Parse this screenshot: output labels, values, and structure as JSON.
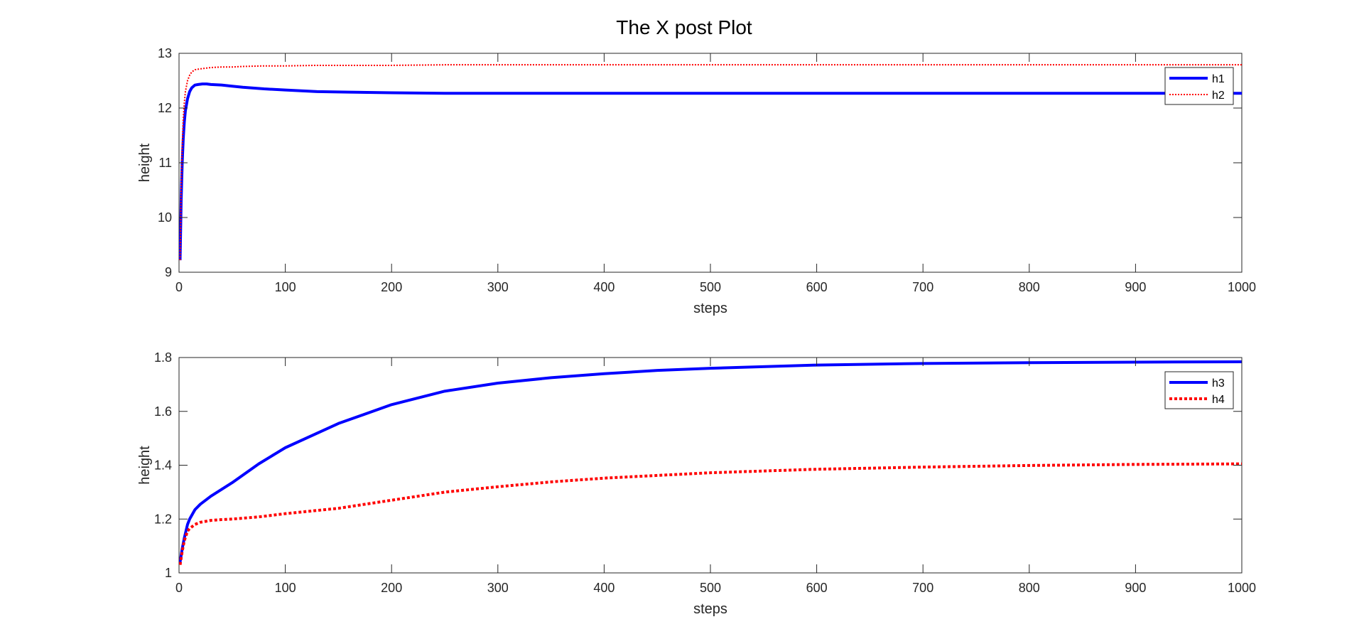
{
  "figure": {
    "title": "The X post Plot"
  },
  "chart_data": [
    {
      "type": "line",
      "xlabel": "steps",
      "ylabel": "height",
      "xlim": [
        0,
        1000
      ],
      "ylim": [
        9,
        13
      ],
      "xticks": [
        0,
        100,
        200,
        300,
        400,
        500,
        600,
        700,
        800,
        900,
        1000
      ],
      "yticks": [
        9,
        10,
        11,
        12,
        13
      ],
      "legend": "top-right",
      "grid": false,
      "series": [
        {
          "name": "h1",
          "color": "#0000ff",
          "style": "solid",
          "width": 4,
          "x": [
            1,
            2,
            3,
            4,
            5,
            6,
            8,
            10,
            12,
            15,
            18,
            22,
            26,
            30,
            40,
            50,
            60,
            80,
            100,
            130,
            160,
            200,
            250,
            300,
            400,
            500,
            600,
            700,
            800,
            900,
            1000
          ],
          "y": [
            9.22,
            10.3,
            11.0,
            11.45,
            11.75,
            11.95,
            12.17,
            12.3,
            12.37,
            12.42,
            12.43,
            12.44,
            12.44,
            12.43,
            12.42,
            12.4,
            12.38,
            12.35,
            12.33,
            12.3,
            12.29,
            12.28,
            12.27,
            12.27,
            12.27,
            12.27,
            12.27,
            12.27,
            12.27,
            12.27,
            12.27
          ]
        },
        {
          "name": "h2",
          "color": "#ff0000",
          "style": "dotted",
          "width": 2,
          "x": [
            1,
            2,
            3,
            4,
            5,
            6,
            8,
            10,
            12,
            15,
            18,
            22,
            26,
            30,
            40,
            50,
            60,
            80,
            100,
            130,
            160,
            200,
            250,
            300,
            400,
            500,
            600,
            700,
            800,
            900,
            1000
          ],
          "y": [
            9.22,
            10.5,
            11.3,
            11.8,
            12.1,
            12.3,
            12.5,
            12.6,
            12.66,
            12.7,
            12.71,
            12.72,
            12.73,
            12.74,
            12.75,
            12.75,
            12.76,
            12.77,
            12.77,
            12.78,
            12.78,
            12.78,
            12.79,
            12.79,
            12.79,
            12.79,
            12.79,
            12.79,
            12.79,
            12.79,
            12.79
          ]
        }
      ]
    },
    {
      "type": "line",
      "xlabel": "steps",
      "ylabel": "height",
      "xlim": [
        0,
        1000
      ],
      "ylim": [
        1,
        1.8
      ],
      "xticks": [
        0,
        100,
        200,
        300,
        400,
        500,
        600,
        700,
        800,
        900,
        1000
      ],
      "yticks": [
        1,
        1.2,
        1.4,
        1.6,
        1.8
      ],
      "legend": "top-right",
      "grid": false,
      "series": [
        {
          "name": "h3",
          "color": "#0000ff",
          "style": "solid",
          "width": 4,
          "x": [
            1,
            3,
            5,
            8,
            10,
            15,
            20,
            30,
            40,
            50,
            75,
            100,
            150,
            200,
            250,
            300,
            350,
            400,
            450,
            500,
            600,
            700,
            800,
            900,
            1000
          ],
          "y": [
            1.04,
            1.09,
            1.13,
            1.18,
            1.2,
            1.235,
            1.255,
            1.285,
            1.31,
            1.335,
            1.405,
            1.465,
            1.555,
            1.625,
            1.675,
            1.705,
            1.725,
            1.74,
            1.752,
            1.76,
            1.772,
            1.778,
            1.781,
            1.783,
            1.784
          ]
        },
        {
          "name": "h4",
          "color": "#ff0000",
          "style": "dotted",
          "width": 4,
          "x": [
            1,
            3,
            5,
            8,
            10,
            15,
            20,
            30,
            40,
            50,
            75,
            100,
            150,
            200,
            250,
            300,
            350,
            400,
            450,
            500,
            600,
            700,
            800,
            900,
            1000
          ],
          "y": [
            1.03,
            1.08,
            1.12,
            1.155,
            1.165,
            1.18,
            1.188,
            1.195,
            1.198,
            1.2,
            1.208,
            1.22,
            1.24,
            1.27,
            1.3,
            1.32,
            1.338,
            1.352,
            1.362,
            1.372,
            1.385,
            1.393,
            1.399,
            1.403,
            1.405
          ]
        }
      ]
    }
  ]
}
